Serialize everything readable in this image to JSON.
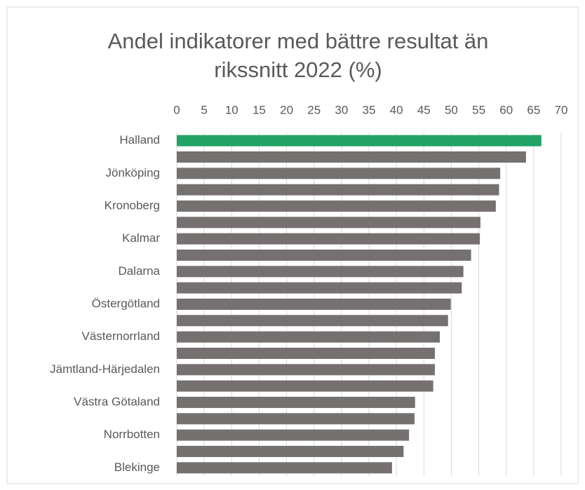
{
  "chart_data": {
    "type": "bar",
    "orientation": "horizontal",
    "title": "Andel indikatorer med bättre resultat än rikssnitt 2022 (%)",
    "categories": [
      "Halland",
      null,
      "Jönköping",
      null,
      "Kronoberg",
      null,
      "Kalmar",
      null,
      "Dalarna",
      null,
      "Östergötland",
      null,
      "Västernorrland",
      null,
      "Jämtland-Härjedalen",
      null,
      "Västra Götaland",
      null,
      "Norrbotten",
      null,
      "Blekinge"
    ],
    "values": [
      66.4,
      63.6,
      58.9,
      58.7,
      58.1,
      55.3,
      55.2,
      53.6,
      52.2,
      51.9,
      49.9,
      49.4,
      47.9,
      47.0,
      47.0,
      46.7,
      43.4,
      43.3,
      42.3,
      41.3,
      39.2
    ],
    "colors": [
      "#21a366",
      "#767171",
      "#767171",
      "#767171",
      "#767171",
      "#767171",
      "#767171",
      "#767171",
      "#767171",
      "#767171",
      "#767171",
      "#767171",
      "#767171",
      "#767171",
      "#767171",
      "#767171",
      "#767171",
      "#767171",
      "#767171",
      "#767171",
      "#767171"
    ],
    "xlim": [
      0,
      70
    ],
    "xticks": [
      0,
      5,
      10,
      15,
      20,
      25,
      30,
      35,
      40,
      45,
      50,
      55,
      60,
      65,
      70
    ],
    "grid": true
  }
}
